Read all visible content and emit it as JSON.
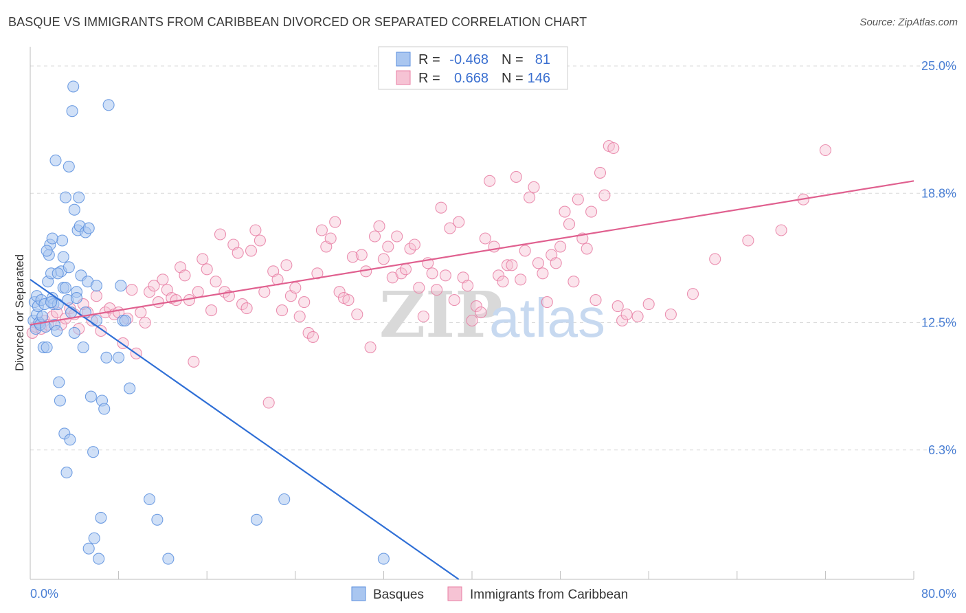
{
  "title": "BASQUE VS IMMIGRANTS FROM CARIBBEAN DIVORCED OR SEPARATED CORRELATION CHART",
  "source": "Source: ZipAtlas.com",
  "watermark": {
    "part1": "ZIP",
    "part2": "atlas"
  },
  "colors": {
    "blue": "#5b8fde",
    "blue_fill": "#a9c6f0",
    "pink": "#e87ea3",
    "pink_fill": "#f6c3d4",
    "blue_line": "#2f6fd6",
    "pink_line": "#e0608f"
  },
  "legend": {
    "r_label": "R =",
    "n_label": "N =",
    "rows": [
      {
        "r": "-0.468",
        "n": "81"
      },
      {
        "r": "0.668",
        "n": "146"
      }
    ]
  },
  "bottom_legend": [
    "Basques",
    "Immigrants from Caribbean"
  ],
  "chart_data": {
    "type": "scatter",
    "title": "BASQUE VS IMMIGRANTS FROM CARIBBEAN DIVORCED OR SEPARATED CORRELATION CHART",
    "xlabel": "",
    "ylabel": "Divorced or Separated",
    "xlim": [
      0,
      80
    ],
    "ylim": [
      0,
      25.0
    ],
    "x_tick_labels": [
      "0.0%",
      "80.0%"
    ],
    "y_ticks": [
      6.3,
      12.5,
      18.8,
      25.0
    ],
    "y_tick_labels": [
      "6.3%",
      "12.5%",
      "18.8%",
      "25.0%"
    ],
    "grid": true,
    "series": [
      {
        "name": "Basques",
        "trend": {
          "x": [
            0,
            38.8
          ],
          "y": [
            14.6,
            0
          ]
        },
        "x": [
          0.3,
          0.4,
          0.5,
          0.6,
          0.6,
          0.7,
          0.8,
          0.9,
          1.0,
          1.1,
          1.2,
          1.3,
          1.4,
          1.5,
          1.6,
          1.7,
          1.8,
          1.9,
          2.0,
          2.1,
          2.2,
          2.3,
          2.4,
          2.5,
          2.6,
          2.7,
          2.8,
          2.9,
          3.0,
          3.1,
          3.2,
          3.3,
          3.4,
          3.5,
          3.6,
          3.7,
          3.8,
          3.9,
          4.0,
          4.2,
          4.3,
          4.5,
          4.6,
          4.8,
          5.0,
          5.2,
          5.3,
          5.5,
          5.7,
          5.8,
          6.0,
          6.2,
          6.4,
          6.5,
          6.7,
          6.9,
          7.1,
          8.0,
          8.2,
          8.4,
          8.6,
          9.0,
          10.8,
          11.5,
          12.5,
          3.0,
          2.0,
          1.5,
          1.9,
          2.5,
          3.5,
          3.2,
          4.0,
          4.4,
          4.2,
          5.0,
          5.3,
          6.0,
          23.0,
          20.5,
          32.0
        ],
        "y": [
          12.6,
          13.5,
          12.2,
          13.8,
          12.9,
          13.3,
          12.5,
          12.4,
          13.6,
          12.8,
          11.3,
          13.4,
          12.3,
          11.3,
          14.5,
          15.8,
          16.3,
          14.9,
          13.7,
          13.4,
          12.4,
          20.4,
          12.1,
          13.4,
          9.6,
          8.7,
          15.0,
          16.5,
          14.2,
          7.1,
          18.6,
          5.2,
          13.6,
          20.1,
          6.8,
          13.0,
          22.8,
          24.0,
          12.0,
          14.0,
          17.0,
          17.2,
          14.8,
          11.3,
          13.0,
          14.5,
          1.5,
          8.9,
          6.2,
          2.0,
          12.6,
          1.0,
          3.0,
          8.7,
          8.3,
          10.8,
          23.1,
          10.8,
          14.3,
          12.6,
          12.6,
          9.3,
          3.9,
          2.9,
          1.0,
          15.7,
          16.6,
          16.0,
          13.5,
          14.9,
          15.2,
          14.2,
          18.0,
          18.6,
          13.7,
          16.9,
          17.1,
          14.3,
          3.9,
          2.9,
          1.0
        ]
      },
      {
        "name": "Immigrants from Caribbean",
        "trend": {
          "x": [
            0,
            80
          ],
          "y": [
            12.4,
            19.4
          ]
        },
        "x": [
          0.2,
          0.5,
          0.8,
          1.0,
          1.3,
          1.6,
          2.0,
          2.4,
          2.8,
          3.2,
          3.6,
          4.0,
          4.4,
          4.8,
          5.2,
          5.6,
          6.0,
          6.4,
          6.8,
          7.2,
          7.6,
          8.0,
          8.4,
          8.8,
          9.2,
          9.6,
          10.0,
          10.4,
          10.8,
          11.2,
          11.6,
          12.0,
          12.4,
          12.8,
          13.2,
          13.6,
          14.0,
          14.4,
          14.8,
          15.2,
          15.6,
          16.0,
          16.4,
          16.8,
          17.2,
          17.6,
          18.0,
          18.4,
          18.8,
          19.2,
          19.6,
          20.0,
          20.4,
          20.8,
          21.2,
          21.6,
          22.0,
          22.4,
          22.8,
          23.2,
          23.6,
          24.0,
          24.4,
          24.8,
          25.2,
          25.6,
          26.0,
          26.4,
          26.8,
          27.2,
          27.6,
          28.0,
          28.4,
          28.8,
          29.2,
          29.6,
          30.0,
          30.4,
          30.8,
          31.2,
          31.6,
          32.0,
          32.4,
          32.8,
          33.2,
          33.6,
          34.0,
          34.4,
          34.8,
          35.2,
          35.6,
          36.0,
          36.4,
          36.8,
          37.2,
          37.6,
          38.0,
          38.4,
          38.8,
          39.2,
          39.6,
          40.0,
          40.4,
          40.8,
          41.2,
          41.6,
          42.0,
          42.4,
          42.8,
          43.2,
          43.6,
          44.0,
          44.4,
          44.8,
          45.2,
          45.6,
          46.0,
          46.4,
          46.8,
          47.2,
          47.6,
          48.0,
          48.4,
          48.8,
          49.2,
          49.6,
          50.0,
          50.4,
          50.8,
          51.2,
          51.6,
          52.0,
          52.4,
          52.8,
          53.2,
          53.6,
          54.0,
          55.0,
          56.0,
          58.0,
          60.0,
          62.0,
          65.0,
          68.0,
          70.0,
          72.0
        ],
        "y": [
          12.0,
          12.3,
          12.5,
          12.2,
          12.6,
          12.4,
          12.8,
          13.0,
          12.4,
          12.7,
          13.2,
          12.9,
          12.2,
          13.4,
          13.0,
          12.6,
          13.8,
          12.1,
          13.0,
          13.2,
          12.9,
          13.0,
          11.5,
          12.7,
          14.1,
          11.0,
          13.0,
          12.5,
          14.0,
          14.3,
          13.5,
          14.6,
          14.1,
          13.7,
          13.6,
          15.2,
          14.8,
          13.6,
          10.6,
          14.0,
          15.6,
          15.1,
          13.1,
          14.5,
          16.8,
          14.0,
          13.8,
          16.3,
          15.9,
          13.4,
          13.2,
          16.0,
          17.0,
          16.5,
          14.0,
          8.6,
          15.0,
          14.6,
          13.1,
          15.3,
          13.8,
          14.2,
          12.8,
          13.5,
          12.0,
          11.8,
          14.9,
          17.0,
          16.2,
          16.6,
          17.4,
          14.0,
          13.7,
          13.6,
          15.7,
          12.9,
          15.8,
          15.0,
          11.3,
          16.7,
          17.2,
          15.6,
          16.2,
          14.7,
          16.7,
          14.9,
          15.1,
          16.1,
          16.3,
          14.2,
          12.8,
          15.4,
          14.9,
          14.1,
          18.1,
          14.8,
          17.1,
          13.6,
          17.4,
          14.7,
          14.3,
          12.6,
          13.3,
          13.0,
          16.6,
          19.4,
          16.2,
          14.8,
          14.5,
          15.3,
          15.3,
          19.6,
          14.6,
          16.0,
          18.6,
          19.1,
          15.4,
          14.9,
          13.5,
          15.8,
          15.4,
          16.2,
          17.9,
          17.3,
          14.5,
          18.5,
          16.6,
          16.1,
          17.9,
          13.6,
          19.8,
          18.7,
          21.1,
          21.0,
          13.3,
          12.6,
          12.9,
          12.8,
          13.4,
          12.9,
          13.9,
          15.6,
          16.5,
          17.0,
          18.5,
          20.9
        ],
        "note_skip": true
      }
    ]
  }
}
